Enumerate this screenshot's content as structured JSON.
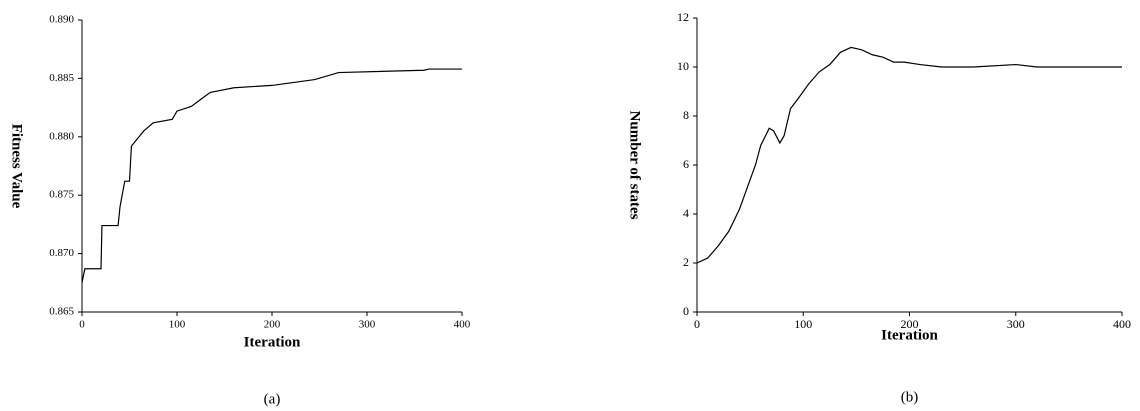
{
  "chart_data": [
    {
      "type": "line",
      "x_label": "Iteration",
      "y_label": "Fitness Value",
      "caption": "(a)",
      "color": "#000000",
      "x": [
        0,
        3,
        20,
        21,
        38,
        40,
        45,
        50,
        52,
        60,
        65,
        75,
        95,
        100,
        115,
        125,
        135,
        160,
        200,
        245,
        270,
        360,
        365,
        400
      ],
      "values": [
        0.8675,
        0.8687,
        0.8687,
        0.8724,
        0.8724,
        0.874,
        0.8762,
        0.8762,
        0.8792,
        0.88,
        0.8805,
        0.8812,
        0.8815,
        0.8822,
        0.8826,
        0.8832,
        0.8838,
        0.8842,
        0.8844,
        0.8849,
        0.8855,
        0.8857,
        0.8858,
        0.8858
      ],
      "xlim": [
        0,
        400
      ],
      "xticks": [
        0,
        100,
        200,
        300,
        400
      ],
      "ylim": [
        0.865,
        0.89
      ],
      "yticks": [
        0.865,
        {
          "value": 0.87,
          "label": "0.870"
        },
        0.875,
        {
          "value": 0.88,
          "label": "0.880"
        },
        0.885,
        {
          "value": 0.89,
          "label": "0.890"
        }
      ]
    },
    {
      "type": "line",
      "x_label": "Iteration",
      "y_label": "Number of states",
      "caption": "(b)",
      "color": "#000000",
      "x": [
        0,
        10,
        20,
        30,
        40,
        50,
        55,
        60,
        68,
        72,
        78,
        82,
        88,
        95,
        105,
        115,
        125,
        135,
        145,
        155,
        165,
        175,
        185,
        195,
        210,
        230,
        260,
        300,
        320,
        350,
        400
      ],
      "values": [
        2.0,
        2.2,
        2.7,
        3.3,
        4.2,
        5.4,
        6.0,
        6.8,
        7.5,
        7.4,
        6.9,
        7.2,
        8.3,
        8.7,
        9.3,
        9.8,
        10.1,
        10.6,
        10.8,
        10.7,
        10.5,
        10.4,
        10.2,
        10.2,
        10.1,
        10.0,
        10.0,
        10.1,
        10.0,
        10.0,
        10.0
      ],
      "xlim": [
        0,
        400
      ],
      "xticks": [
        0,
        100,
        200,
        300,
        400
      ],
      "ylim": [
        0,
        12
      ],
      "yticks": [
        0,
        2,
        4,
        6,
        8,
        10,
        12
      ]
    }
  ]
}
